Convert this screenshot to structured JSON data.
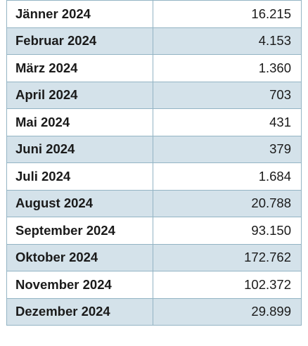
{
  "table": {
    "rows": [
      {
        "month": "Jänner 2024",
        "value": "16.215"
      },
      {
        "month": "Februar 2024",
        "value": "4.153"
      },
      {
        "month": "März 2024",
        "value": "1.360"
      },
      {
        "month": "April 2024",
        "value": "703"
      },
      {
        "month": "Mai 2024",
        "value": "431"
      },
      {
        "month": "Juni 2024",
        "value": "379"
      },
      {
        "month": "Juli 2024",
        "value": "1.684"
      },
      {
        "month": "August 2024",
        "value": "20.788"
      },
      {
        "month": "September 2024",
        "value": "93.150"
      },
      {
        "month": "Oktober 2024",
        "value": "172.762"
      },
      {
        "month": "November 2024",
        "value": "102.372"
      },
      {
        "month": "Dezember 2024",
        "value": "29.899"
      }
    ]
  },
  "colors": {
    "border": "#93b4c4",
    "shaded_row": "#d4e2ea",
    "plain_row": "#ffffff",
    "text": "#1a1a1a"
  }
}
